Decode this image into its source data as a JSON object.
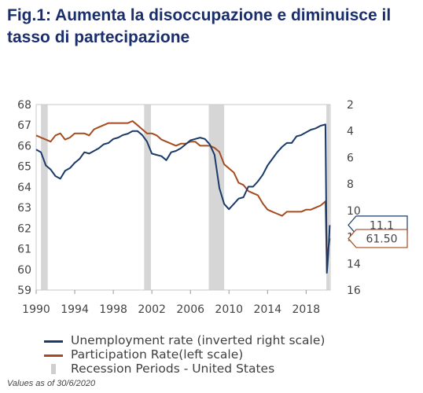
{
  "title": "Fig.1: Aumenta la disoccupazione e diminuisce il tasso di partecipazione",
  "footnote": "Values as of 30/6/2020",
  "colors": {
    "unemployment": "#1a3a68",
    "participation": "#a64a1f",
    "recession": "#d6d6d6"
  },
  "legend": [
    {
      "label": "Unemployment rate (inverted right scale)",
      "kind": "line",
      "color": "#1a3a68"
    },
    {
      "label": "Participation Rate(left scale)",
      "kind": "line",
      "color": "#a64a1f"
    },
    {
      "label": "Recession Periods - United States",
      "kind": "bar",
      "color": "#cfcfcf"
    }
  ],
  "chart_data": {
    "type": "line",
    "title": "",
    "xlabel": "",
    "ylabel": "",
    "x_ticks": [
      "1990",
      "1994",
      "1998",
      "2002",
      "2006",
      "2010",
      "2014",
      "2018"
    ],
    "xlim": [
      1990,
      2020.5
    ],
    "left_ticks": [
      "59",
      "60",
      "61",
      "62",
      "63",
      "64",
      "65",
      "66",
      "67",
      "68"
    ],
    "ylim_left": [
      59,
      68
    ],
    "right_ticks": [
      "2",
      "4",
      "6",
      "8",
      "10",
      "12",
      "14",
      "16"
    ],
    "ylim_right_inverted": [
      2,
      16
    ],
    "recessions": [
      {
        "start": 1990.5,
        "end": 1991.2
      },
      {
        "start": 2001.2,
        "end": 2001.9
      },
      {
        "start": 2007.9,
        "end": 2009.5
      },
      {
        "start": 2020.1,
        "end": 2020.4
      }
    ],
    "series": [
      {
        "name": "Participation Rate(left scale)",
        "axis": "left",
        "x": [
          1990.0,
          1990.5,
          1991.0,
          1991.5,
          1992.0,
          1992.5,
          1993.0,
          1993.5,
          1994.0,
          1994.5,
          1995.0,
          1995.5,
          1996.0,
          1996.5,
          1997.0,
          1997.5,
          1998.0,
          1998.5,
          1999.0,
          1999.5,
          2000.0,
          2000.5,
          2001.0,
          2001.5,
          2002.0,
          2002.5,
          2003.0,
          2003.5,
          2004.0,
          2004.5,
          2005.0,
          2005.5,
          2006.0,
          2006.5,
          2007.0,
          2007.5,
          2008.0,
          2008.5,
          2009.0,
          2009.5,
          2010.0,
          2010.5,
          2011.0,
          2011.5,
          2012.0,
          2012.5,
          2013.0,
          2013.5,
          2014.0,
          2014.5,
          2015.0,
          2015.5,
          2016.0,
          2016.5,
          2017.0,
          2017.5,
          2018.0,
          2018.5,
          2019.0,
          2019.5,
          2020.0,
          2020.15,
          2020.3,
          2020.45
        ],
        "values": [
          66.5,
          66.4,
          66.3,
          66.2,
          66.5,
          66.6,
          66.3,
          66.4,
          66.6,
          66.6,
          66.6,
          66.5,
          66.8,
          66.9,
          67.0,
          67.1,
          67.1,
          67.1,
          67.1,
          67.1,
          67.2,
          67.0,
          66.8,
          66.6,
          66.6,
          66.5,
          66.3,
          66.2,
          66.1,
          66.0,
          66.1,
          66.1,
          66.2,
          66.2,
          66.0,
          66.0,
          66.0,
          65.9,
          65.7,
          65.1,
          64.9,
          64.7,
          64.2,
          64.1,
          63.8,
          63.7,
          63.6,
          63.2,
          62.9,
          62.8,
          62.7,
          62.6,
          62.8,
          62.8,
          62.8,
          62.8,
          62.9,
          62.9,
          63.0,
          63.1,
          63.3,
          60.2,
          61.0,
          61.5
        ]
      },
      {
        "name": "Unemployment rate (inverted right scale)",
        "axis": "right",
        "x": [
          1990.0,
          1990.5,
          1991.0,
          1991.5,
          1992.0,
          1992.5,
          1993.0,
          1993.5,
          1994.0,
          1994.5,
          1995.0,
          1995.5,
          1996.0,
          1996.5,
          1997.0,
          1997.5,
          1998.0,
          1998.5,
          1999.0,
          1999.5,
          2000.0,
          2000.5,
          2001.0,
          2001.5,
          2002.0,
          2002.5,
          2003.0,
          2003.5,
          2004.0,
          2004.5,
          2005.0,
          2005.5,
          2006.0,
          2006.5,
          2007.0,
          2007.5,
          2008.0,
          2008.5,
          2009.0,
          2009.5,
          2010.0,
          2010.5,
          2011.0,
          2011.5,
          2012.0,
          2012.5,
          2013.0,
          2013.5,
          2014.0,
          2014.5,
          2015.0,
          2015.5,
          2016.0,
          2016.5,
          2017.0,
          2017.5,
          2018.0,
          2018.5,
          2019.0,
          2019.5,
          2020.0,
          2020.15,
          2020.3,
          2020.45
        ],
        "values": [
          5.4,
          5.6,
          6.6,
          6.9,
          7.4,
          7.6,
          7.0,
          6.8,
          6.4,
          6.1,
          5.6,
          5.7,
          5.5,
          5.3,
          5.0,
          4.9,
          4.6,
          4.5,
          4.3,
          4.2,
          4.0,
          4.0,
          4.3,
          4.8,
          5.7,
          5.8,
          5.9,
          6.2,
          5.6,
          5.5,
          5.3,
          5.0,
          4.7,
          4.6,
          4.5,
          4.6,
          5.0,
          5.8,
          8.3,
          9.5,
          9.9,
          9.5,
          9.1,
          9.0,
          8.2,
          8.2,
          7.8,
          7.3,
          6.6,
          6.1,
          5.6,
          5.2,
          4.9,
          4.9,
          4.4,
          4.3,
          4.1,
          3.9,
          3.8,
          3.6,
          3.5,
          14.7,
          13.3,
          11.1
        ]
      }
    ],
    "end_labels": [
      {
        "series": "Unemployment rate (inverted right scale)",
        "text": "11.1"
      },
      {
        "series": "Participation Rate(left scale)",
        "text": "61.50"
      }
    ]
  }
}
